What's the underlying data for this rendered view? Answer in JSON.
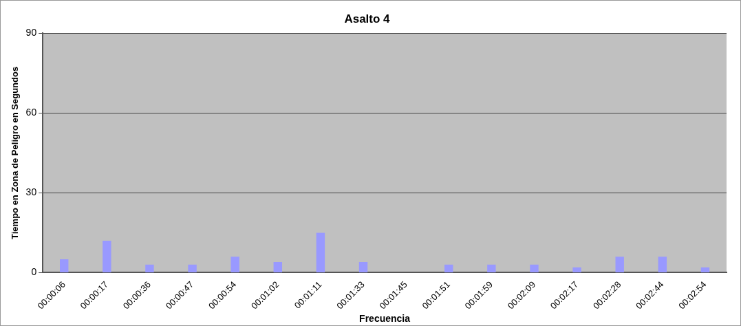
{
  "chart_data": {
    "type": "bar",
    "title": "Asalto 4",
    "xlabel": "Frecuencia",
    "ylabel": "Tiempo en Zona de Peligro en Segundos",
    "categories": [
      "00:00:06",
      "00:00:17",
      "00:00:36",
      "00:00:47",
      "00:00:54",
      "00:01:02",
      "00:01:11",
      "00:01:33",
      "00:01:45",
      "00:01:51",
      "00:01:59",
      "00:02:09",
      "00:02:17",
      "00:02:28",
      "00:02:44",
      "00:02:54"
    ],
    "values": [
      5,
      12,
      3,
      3,
      6,
      4,
      15,
      4,
      0,
      3,
      3,
      3,
      2,
      6,
      6,
      2
    ],
    "color": "#9999ff",
    "ylim": [
      0,
      90
    ],
    "yticks": [
      0,
      30,
      60,
      90
    ],
    "grid": "y",
    "legend": false
  }
}
